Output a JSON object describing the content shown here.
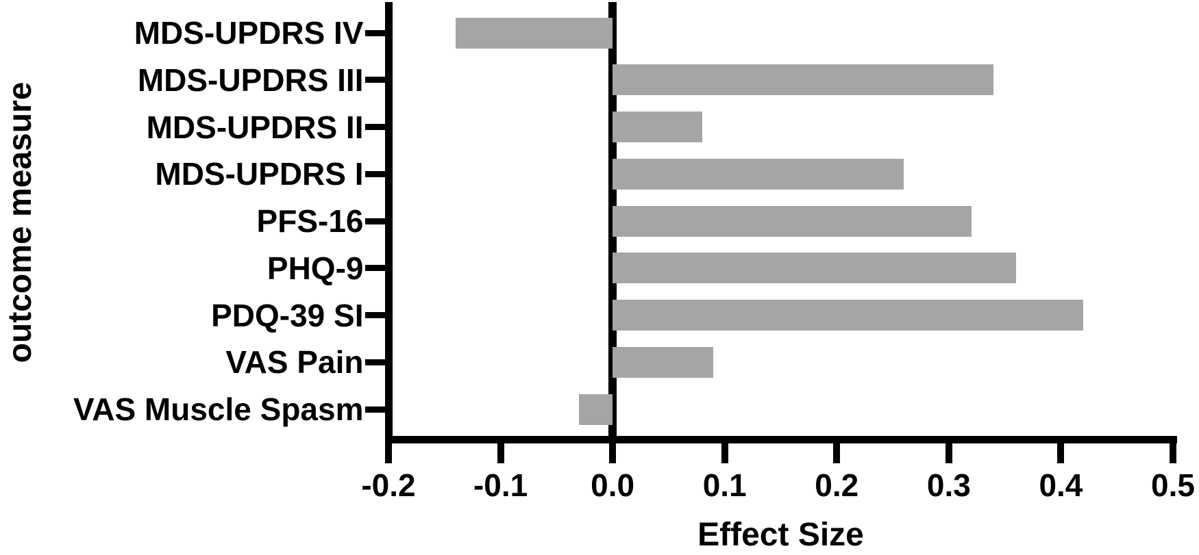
{
  "figure": {
    "background_color": "#ffffff",
    "axis_color": "#000000",
    "text_color": "#000000",
    "bar_color": "#a5a5a5"
  },
  "chart_data": {
    "type": "bar",
    "orientation": "horizontal",
    "title": "",
    "xlabel": "Effect Size",
    "ylabel": "outcome measure",
    "categories": [
      "MDS-UPDRS IV",
      "MDS-UPDRS III",
      "MDS-UPDRS II",
      "MDS-UPDRS I",
      "PFS-16",
      "PHQ-9",
      "PDQ-39 SI",
      "VAS Pain",
      "VAS Muscle Spasm"
    ],
    "values": [
      -0.14,
      0.34,
      0.08,
      0.26,
      0.32,
      0.36,
      0.42,
      0.09,
      -0.03
    ],
    "xlim": [
      -0.2,
      0.5
    ],
    "x_ticks": [
      -0.2,
      -0.1,
      0.0,
      0.1,
      0.2,
      0.3,
      0.4,
      0.5
    ],
    "x_tick_labels": [
      "-0.2",
      "-0.1",
      "0.0",
      "0.1",
      "0.2",
      "0.3",
      "0.4",
      "0.5"
    ],
    "grid": false,
    "legend": "none",
    "zero_baseline": true
  }
}
